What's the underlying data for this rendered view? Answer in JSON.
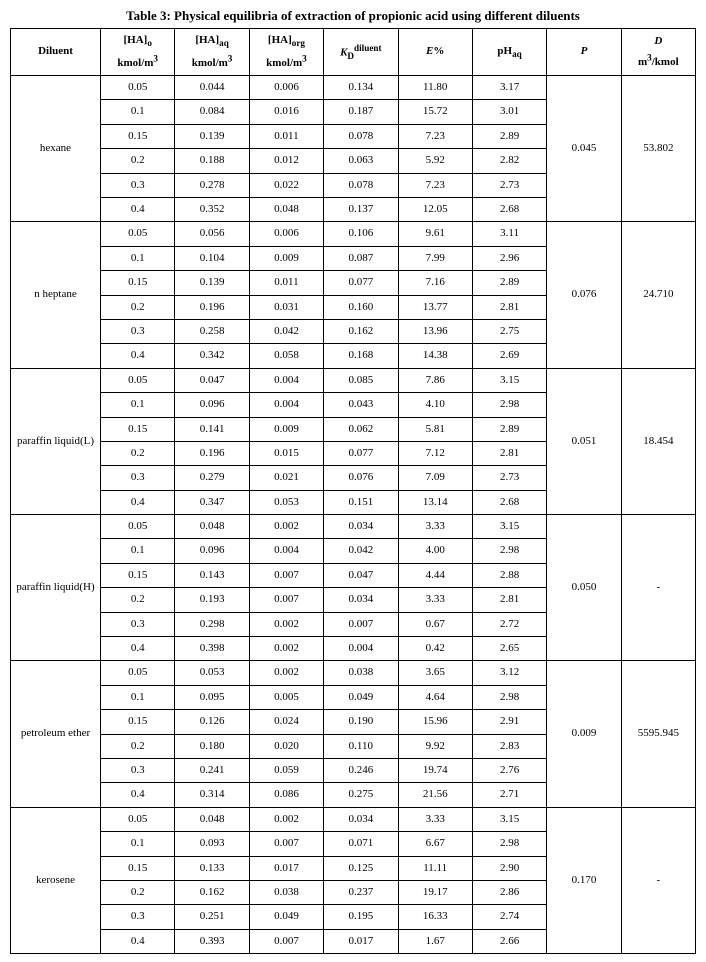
{
  "caption": "Table 3: Physical equilibria of extraction of propionic acid using different diluents",
  "headers": {
    "diluent": "Diluent",
    "ha_o_top": "[HA]",
    "ha_o_sub": "o",
    "ha_o_unit": "kmol/m",
    "ha_aq_top": "[HA]",
    "ha_aq_sub": "aq",
    "ha_aq_unit": "kmol/m",
    "ha_org_top": "[HA]",
    "ha_org_sub": "org",
    "ha_org_unit": "kmol/m",
    "kd_top": "K",
    "kd_sub": "D",
    "kd_sup": "diluent",
    "e_top": "E",
    "e_pct": "%",
    "ph_top": "pH",
    "ph_sub": "aq",
    "p": "P",
    "d_top": "D",
    "d_unit": "m",
    "d_unit2": "/kmol",
    "cubed": "3"
  },
  "groups": [
    {
      "name": "hexane",
      "P": "0.045",
      "D": "53.802",
      "rows": [
        {
          "hao": "0.05",
          "haaq": "0.044",
          "haorg": "0.006",
          "kd": "0.134",
          "e": "11.80",
          "ph": "3.17"
        },
        {
          "hao": "0.1",
          "haaq": "0.084",
          "haorg": "0.016",
          "kd": "0.187",
          "e": "15.72",
          "ph": "3.01"
        },
        {
          "hao": "0.15",
          "haaq": "0.139",
          "haorg": "0.011",
          "kd": "0.078",
          "e": "7.23",
          "ph": "2.89"
        },
        {
          "hao": "0.2",
          "haaq": "0.188",
          "haorg": "0.012",
          "kd": "0.063",
          "e": "5.92",
          "ph": "2.82"
        },
        {
          "hao": "0.3",
          "haaq": "0.278",
          "haorg": "0.022",
          "kd": "0.078",
          "e": "7.23",
          "ph": "2.73"
        },
        {
          "hao": "0.4",
          "haaq": "0.352",
          "haorg": "0.048",
          "kd": "0.137",
          "e": "12.05",
          "ph": "2.68"
        }
      ]
    },
    {
      "name": "n heptane",
      "P": "0.076",
      "D": "24.710",
      "rows": [
        {
          "hao": "0.05",
          "haaq": "0.056",
          "haorg": "0.006",
          "kd": "0.106",
          "e": "9.61",
          "ph": "3.11"
        },
        {
          "hao": "0.1",
          "haaq": "0.104",
          "haorg": "0.009",
          "kd": "0.087",
          "e": "7.99",
          "ph": "2.96"
        },
        {
          "hao": "0.15",
          "haaq": "0.139",
          "haorg": "0.011",
          "kd": "0.077",
          "e": "7.16",
          "ph": "2.89"
        },
        {
          "hao": "0.2",
          "haaq": "0.196",
          "haorg": "0.031",
          "kd": "0.160",
          "e": "13.77",
          "ph": "2.81"
        },
        {
          "hao": "0.3",
          "haaq": "0.258",
          "haorg": "0.042",
          "kd": "0.162",
          "e": "13.96",
          "ph": "2.75"
        },
        {
          "hao": "0.4",
          "haaq": "0.342",
          "haorg": "0.058",
          "kd": "0.168",
          "e": "14.38",
          "ph": "2.69"
        }
      ]
    },
    {
      "name": "paraffin liquid(L)",
      "P": "0.051",
      "D": "18.454",
      "rows": [
        {
          "hao": "0.05",
          "haaq": "0.047",
          "haorg": "0.004",
          "kd": "0.085",
          "e": "7.86",
          "ph": "3.15"
        },
        {
          "hao": "0.1",
          "haaq": "0.096",
          "haorg": "0.004",
          "kd": "0.043",
          "e": "4.10",
          "ph": "2.98"
        },
        {
          "hao": "0.15",
          "haaq": "0.141",
          "haorg": "0.009",
          "kd": "0.062",
          "e": "5.81",
          "ph": "2.89"
        },
        {
          "hao": "0.2",
          "haaq": "0.196",
          "haorg": "0.015",
          "kd": "0.077",
          "e": "7.12",
          "ph": "2.81"
        },
        {
          "hao": "0.3",
          "haaq": "0.279",
          "haorg": "0.021",
          "kd": "0.076",
          "e": "7.09",
          "ph": "2.73"
        },
        {
          "hao": "0.4",
          "haaq": "0.347",
          "haorg": "0.053",
          "kd": "0.151",
          "e": "13.14",
          "ph": "2.68"
        }
      ]
    },
    {
      "name": "paraffin liquid(H)",
      "P": "0.050",
      "D": "-",
      "rows": [
        {
          "hao": "0.05",
          "haaq": "0.048",
          "haorg": "0.002",
          "kd": "0.034",
          "e": "3.33",
          "ph": "3.15"
        },
        {
          "hao": "0.1",
          "haaq": "0.096",
          "haorg": "0.004",
          "kd": "0.042",
          "e": "4.00",
          "ph": "2.98"
        },
        {
          "hao": "0.15",
          "haaq": "0.143",
          "haorg": "0.007",
          "kd": "0.047",
          "e": "4.44",
          "ph": "2.88"
        },
        {
          "hao": "0.2",
          "haaq": "0.193",
          "haorg": "0.007",
          "kd": "0.034",
          "e": "3.33",
          "ph": "2.81"
        },
        {
          "hao": "0.3",
          "haaq": "0.298",
          "haorg": "0.002",
          "kd": "0.007",
          "e": "0.67",
          "ph": "2.72"
        },
        {
          "hao": "0.4",
          "haaq": "0.398",
          "haorg": "0.002",
          "kd": "0.004",
          "e": "0.42",
          "ph": "2.65"
        }
      ]
    },
    {
      "name": "petroleum ether",
      "P": "0.009",
      "D": "5595.945",
      "rows": [
        {
          "hao": "0.05",
          "haaq": "0.053",
          "haorg": "0.002",
          "kd": "0.038",
          "e": "3.65",
          "ph": "3.12"
        },
        {
          "hao": "0.1",
          "haaq": "0.095",
          "haorg": "0.005",
          "kd": "0.049",
          "e": "4.64",
          "ph": "2.98"
        },
        {
          "hao": "0.15",
          "haaq": "0.126",
          "haorg": "0.024",
          "kd": "0.190",
          "e": "15.96",
          "ph": "2.91"
        },
        {
          "hao": "0.2",
          "haaq": "0.180",
          "haorg": "0.020",
          "kd": "0.110",
          "e": "9.92",
          "ph": "2.83"
        },
        {
          "hao": "0.3",
          "haaq": "0.241",
          "haorg": "0.059",
          "kd": "0.246",
          "e": "19.74",
          "ph": "2.76"
        },
        {
          "hao": "0.4",
          "haaq": "0.314",
          "haorg": "0.086",
          "kd": "0.275",
          "e": "21.56",
          "ph": "2.71"
        }
      ]
    },
    {
      "name": "kerosene",
      "P": "0.170",
      "D": "-",
      "rows": [
        {
          "hao": "0.05",
          "haaq": "0.048",
          "haorg": "0.002",
          "kd": "0.034",
          "e": "3.33",
          "ph": "3.15"
        },
        {
          "hao": "0.1",
          "haaq": "0.093",
          "haorg": "0.007",
          "kd": "0.071",
          "e": "6.67",
          "ph": "2.98"
        },
        {
          "hao": "0.15",
          "haaq": "0.133",
          "haorg": "0.017",
          "kd": "0.125",
          "e": "11.11",
          "ph": "2.90"
        },
        {
          "hao": "0.2",
          "haaq": "0.162",
          "haorg": "0.038",
          "kd": "0.237",
          "e": "19.17",
          "ph": "2.86"
        },
        {
          "hao": "0.3",
          "haaq": "0.251",
          "haorg": "0.049",
          "kd": "0.195",
          "e": "16.33",
          "ph": "2.74"
        },
        {
          "hao": "0.4",
          "haaq": "0.393",
          "haorg": "0.007",
          "kd": "0.017",
          "e": "1.67",
          "ph": "2.66"
        }
      ]
    }
  ]
}
